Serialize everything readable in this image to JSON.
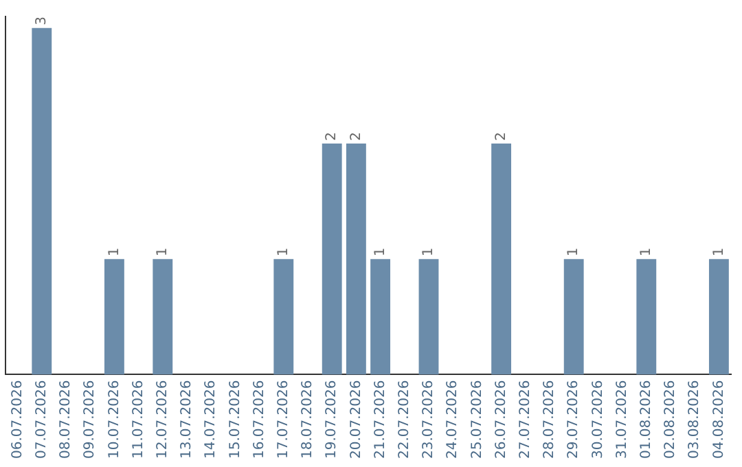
{
  "chart_data": {
    "type": "bar",
    "categories": [
      "06.07.2026",
      "07.07.2026",
      "08.07.2026",
      "09.07.2026",
      "10.07.2026",
      "11.07.2026",
      "12.07.2026",
      "13.07.2026",
      "14.07.2026",
      "15.07.2026",
      "16.07.2026",
      "17.07.2026",
      "18.07.2026",
      "19.07.2026",
      "20.07.2026",
      "21.07.2026",
      "22.07.2026",
      "23.07.2026",
      "24.07.2026",
      "25.07.2026",
      "26.07.2026",
      "27.07.2026",
      "28.07.2026",
      "29.07.2026",
      "30.07.2026",
      "31.07.2026",
      "01.08.2026",
      "02.08.2026",
      "03.08.2026",
      "04.08.2026"
    ],
    "values": [
      0,
      3,
      0,
      0,
      1,
      0,
      1,
      0,
      0,
      0,
      0,
      1,
      0,
      2,
      2,
      1,
      0,
      1,
      0,
      0,
      2,
      0,
      0,
      1,
      0,
      0,
      1,
      0,
      0,
      1
    ],
    "value_labels": [
      null,
      "3",
      null,
      null,
      "1",
      null,
      "1",
      null,
      null,
      null,
      null,
      "1",
      null,
      "2",
      "2",
      "1",
      null,
      "1",
      null,
      null,
      "2",
      null,
      null,
      "1",
      null,
      null,
      "1",
      null,
      null,
      "1"
    ],
    "color": "#6b8caa",
    "ylim": [
      0,
      3.1
    ],
    "tick_labels": "x",
    "grid": false,
    "legend": false
  }
}
